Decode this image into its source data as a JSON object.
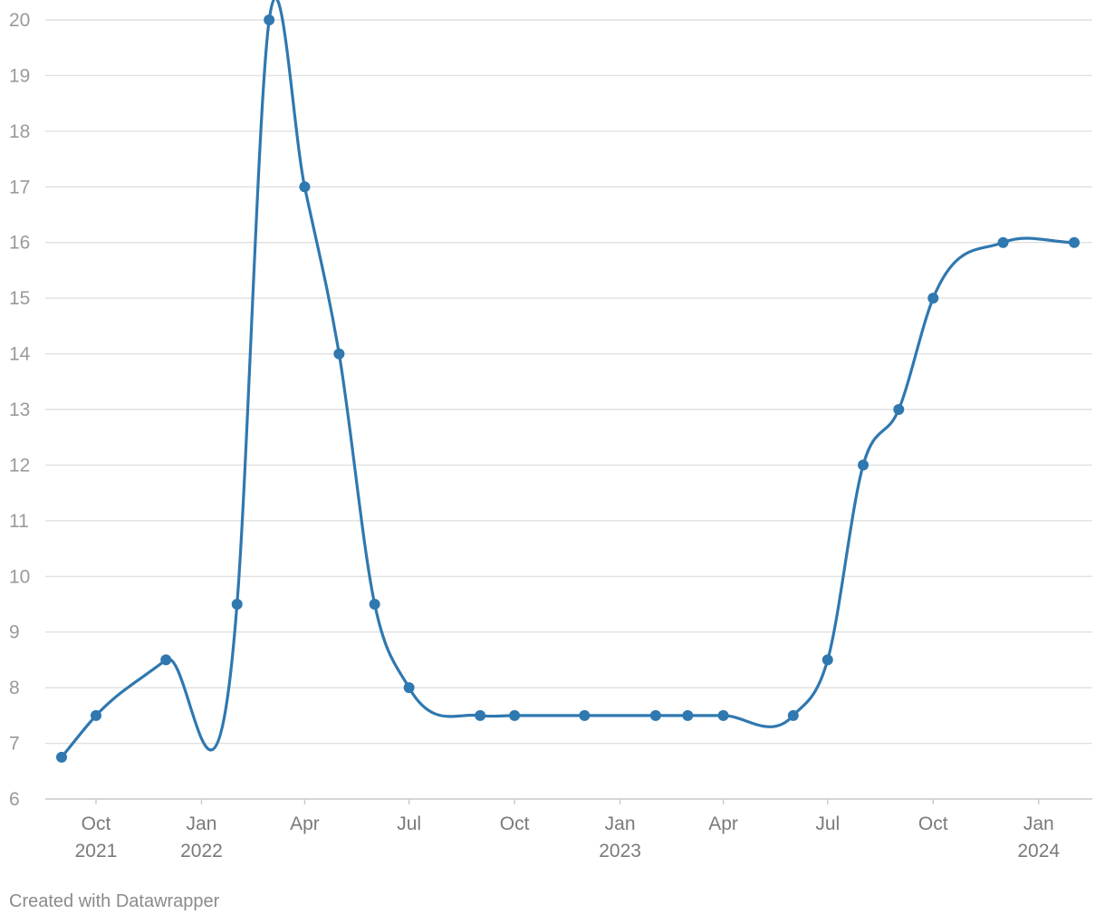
{
  "chart_data": {
    "type": "line",
    "x_axis_type": "date",
    "ylim": [
      6,
      20
    ],
    "yticks": [
      6,
      7,
      8,
      9,
      10,
      11,
      12,
      13,
      14,
      15,
      16,
      17,
      18,
      19,
      20
    ],
    "grid": true,
    "xticks": [
      {
        "date": "2021-10-01",
        "month": "Oct",
        "year": "2021"
      },
      {
        "date": "2022-01-01",
        "month": "Jan",
        "year": "2022"
      },
      {
        "date": "2022-04-01",
        "month": "Apr",
        "year": ""
      },
      {
        "date": "2022-07-01",
        "month": "Jul",
        "year": ""
      },
      {
        "date": "2022-10-01",
        "month": "Oct",
        "year": ""
      },
      {
        "date": "2023-01-01",
        "month": "Jan",
        "year": "2023"
      },
      {
        "date": "2023-04-01",
        "month": "Apr",
        "year": ""
      },
      {
        "date": "2023-07-01",
        "month": "Jul",
        "year": ""
      },
      {
        "date": "2023-10-01",
        "month": "Oct",
        "year": ""
      },
      {
        "date": "2024-01-01",
        "month": "Jan",
        "year": "2024"
      }
    ],
    "color": "#2f78b0",
    "series": [
      {
        "points": [
          {
            "x": "2021-09-01",
            "y": 6.75
          },
          {
            "x": "2021-10-01",
            "y": 7.5
          },
          {
            "x": "2021-12-01",
            "y": 8.5
          },
          {
            "x": "2022-02-01",
            "y": 9.5
          },
          {
            "x": "2022-03-01",
            "y": 20
          },
          {
            "x": "2022-04-01",
            "y": 17
          },
          {
            "x": "2022-05-01",
            "y": 14
          },
          {
            "x": "2022-06-01",
            "y": 9.5
          },
          {
            "x": "2022-07-01",
            "y": 8
          },
          {
            "x": "2022-09-01",
            "y": 7.5
          },
          {
            "x": "2022-10-01",
            "y": 7.5
          },
          {
            "x": "2022-12-01",
            "y": 7.5
          },
          {
            "x": "2023-02-01",
            "y": 7.5
          },
          {
            "x": "2023-03-01",
            "y": 7.5
          },
          {
            "x": "2023-04-01",
            "y": 7.5
          },
          {
            "x": "2023-06-01",
            "y": 7.5
          },
          {
            "x": "2023-07-01",
            "y": 8.5
          },
          {
            "x": "2023-08-01",
            "y": 12
          },
          {
            "x": "2023-09-01",
            "y": 13
          },
          {
            "x": "2023-10-01",
            "y": 15
          },
          {
            "x": "2023-12-01",
            "y": 16
          },
          {
            "x": "2024-02-01",
            "y": 16
          }
        ]
      }
    ]
  },
  "credit": "Created with Datawrapper"
}
